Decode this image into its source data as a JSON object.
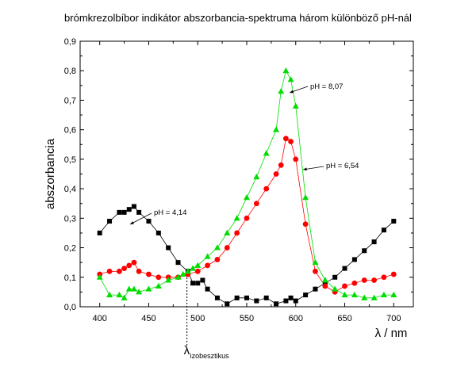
{
  "chart_data": {
    "type": "scatter",
    "title": "brómkrezolbíbor indikátor abszorbancia-spektruma három különböző pH-nál",
    "xlabel": "λ / nm",
    "ylabel": "abszorbancia",
    "xlim": [
      380,
      720
    ],
    "ylim": [
      0.0,
      0.9
    ],
    "x_ticks": [
      400,
      450,
      500,
      550,
      600,
      650,
      700
    ],
    "x_tick_labels": [
      "400",
      "450",
      "500",
      "550",
      "600",
      "650",
      "700"
    ],
    "y_ticks": [
      0.0,
      0.1,
      0.2,
      0.3,
      0.4,
      0.5,
      0.6,
      0.7,
      0.8,
      0.9
    ],
    "y_tick_labels": [
      "0,0",
      "0,1",
      "0,2",
      "0,3",
      "0,4",
      "0,5",
      "0,6",
      "0,7",
      "0,8",
      "0,9"
    ],
    "grid": false,
    "series": [
      {
        "name": "pH = 4,14",
        "marker": "square",
        "color": "#000000",
        "x": [
          400,
          410,
          420,
          425,
          430,
          435,
          440,
          450,
          460,
          470,
          480,
          490,
          495,
          500,
          505,
          510,
          520,
          530,
          540,
          550,
          560,
          570,
          580,
          590,
          595,
          600,
          610,
          620,
          630,
          640,
          650,
          660,
          670,
          680,
          690,
          700
        ],
        "y": [
          0.25,
          0.29,
          0.32,
          0.32,
          0.33,
          0.34,
          0.32,
          0.29,
          0.25,
          0.2,
          0.15,
          0.12,
          0.08,
          0.08,
          0.09,
          0.06,
          0.03,
          0.01,
          0.03,
          0.03,
          0.02,
          0.03,
          0.01,
          0.02,
          0.03,
          0.02,
          0.04,
          0.06,
          0.08,
          0.1,
          0.13,
          0.16,
          0.19,
          0.22,
          0.26,
          0.29
        ]
      },
      {
        "name": "pH = 6,54",
        "marker": "circle",
        "color": "#ff0000",
        "x": [
          400,
          410,
          420,
          425,
          430,
          435,
          440,
          450,
          460,
          470,
          480,
          490,
          500,
          510,
          520,
          530,
          540,
          550,
          560,
          570,
          580,
          585,
          590,
          595,
          600,
          610,
          620,
          630,
          640,
          650,
          660,
          670,
          680,
          690,
          700
        ],
        "y": [
          0.11,
          0.12,
          0.12,
          0.13,
          0.14,
          0.15,
          0.12,
          0.11,
          0.1,
          0.1,
          0.1,
          0.11,
          0.12,
          0.14,
          0.16,
          0.2,
          0.25,
          0.3,
          0.35,
          0.4,
          0.45,
          0.48,
          0.57,
          0.56,
          0.5,
          0.28,
          0.12,
          0.07,
          0.05,
          0.07,
          0.08,
          0.09,
          0.09,
          0.1,
          0.11
        ]
      },
      {
        "name": "pH = 8,07",
        "marker": "triangle",
        "color": "#00dd00",
        "x": [
          400,
          410,
          420,
          425,
          430,
          435,
          440,
          450,
          460,
          470,
          480,
          485,
          490,
          495,
          500,
          510,
          520,
          530,
          540,
          550,
          560,
          570,
          580,
          585,
          590,
          595,
          600,
          610,
          620,
          630,
          640,
          650,
          660,
          670,
          680,
          690,
          700
        ],
        "y": [
          0.1,
          0.04,
          0.04,
          0.03,
          0.06,
          0.06,
          0.05,
          0.06,
          0.07,
          0.09,
          0.1,
          0.11,
          0.12,
          0.13,
          0.14,
          0.17,
          0.2,
          0.25,
          0.3,
          0.37,
          0.44,
          0.52,
          0.6,
          0.73,
          0.8,
          0.77,
          0.68,
          0.37,
          0.15,
          0.09,
          0.06,
          0.04,
          0.04,
          0.03,
          0.03,
          0.04,
          0.04
        ]
      }
    ],
    "annotations": [
      {
        "text": "pH = 4,14",
        "series": 0
      },
      {
        "text": "pH = 6,54",
        "series": 1
      },
      {
        "text": "pH = 8,07",
        "series": 2
      }
    ],
    "isosbestic_marker": {
      "x": 489,
      "label_main": "λ",
      "label_sub": "izobesztikus"
    }
  }
}
